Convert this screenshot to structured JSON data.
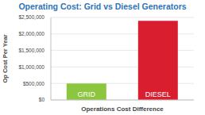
{
  "chart_data": {
    "type": "bar",
    "title": "Operating Cost: Grid vs Diesel Generators",
    "y_label": "Op Cost Per Year",
    "x_label": "Operations Cost Difference",
    "categories": [
      "GRID",
      "DIESEL"
    ],
    "values": [
      500000,
      2400000
    ],
    "colors": [
      "#8cc63e",
      "#d91f2f"
    ],
    "ylim": [
      0,
      2500000
    ],
    "yticks": [
      {
        "value": 0,
        "label": "$0"
      },
      {
        "value": 500000,
        "label": "$500,000"
      },
      {
        "value": 1000000,
        "label": "$1,000,000"
      },
      {
        "value": 1500000,
        "label": "$1,500,000"
      },
      {
        "value": 2000000,
        "label": "$2,000,000"
      },
      {
        "value": 2500000,
        "label": "$2,500,000"
      }
    ],
    "grid": true,
    "tick_labels": "y"
  }
}
